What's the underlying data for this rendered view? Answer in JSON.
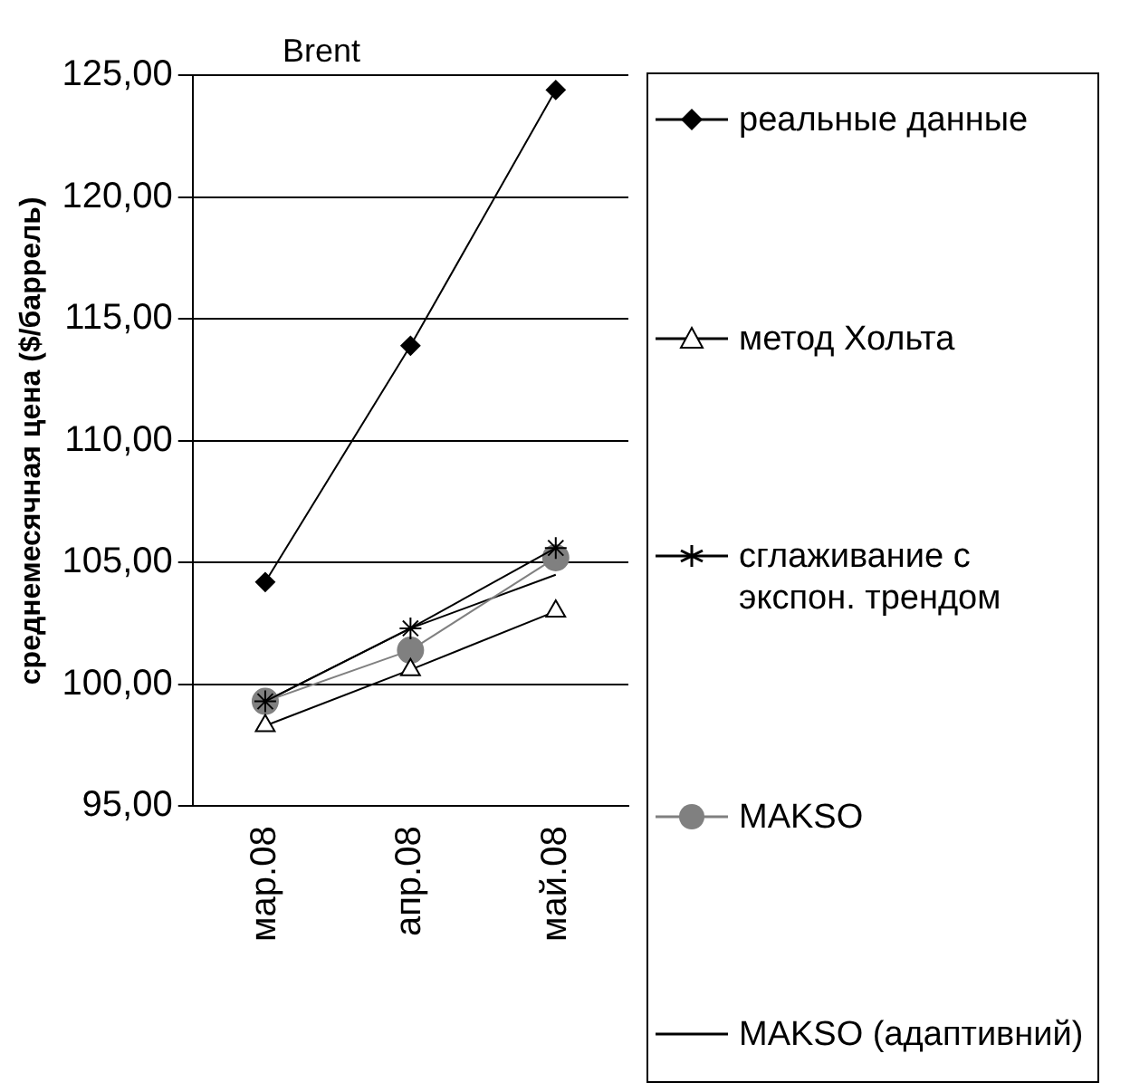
{
  "chart_data": {
    "type": "line",
    "title": "Brent",
    "ylabel": "среднемесячная цена ($/баррель)",
    "categories": [
      "мар.08",
      "апр.08",
      "май.08"
    ],
    "series": [
      {
        "name": "реальные данные",
        "color": "#000000",
        "marker": "diamond",
        "values": [
          104.2,
          113.9,
          124.4
        ]
      },
      {
        "name": "метод Хольта",
        "color": "#000000",
        "marker": "triangle",
        "values": [
          98.3,
          100.6,
          103.0
        ]
      },
      {
        "name": "сглаживание с экспон. трендом",
        "color": "#000000",
        "marker": "cross",
        "values": [
          99.3,
          102.3,
          105.6
        ]
      },
      {
        "name": "MAKSO",
        "color": "#808080",
        "marker": "circle",
        "values": [
          99.3,
          101.4,
          105.2
        ]
      },
      {
        "name": "MAKSO (адаптивний)",
        "color": "#000000",
        "marker": "none",
        "values": [
          99.3,
          102.3,
          104.5
        ]
      }
    ],
    "ylim": [
      95,
      125
    ],
    "yticks": [
      {
        "value": 95,
        "label": "95,00"
      },
      {
        "value": 100,
        "label": "100,00"
      },
      {
        "value": 105,
        "label": "105,00"
      },
      {
        "value": 110,
        "label": "110,00"
      },
      {
        "value": 115,
        "label": "115,00"
      },
      {
        "value": 120,
        "label": "120,00"
      },
      {
        "value": 125,
        "label": "125,00"
      }
    ],
    "grid": "y",
    "legend": "right"
  }
}
